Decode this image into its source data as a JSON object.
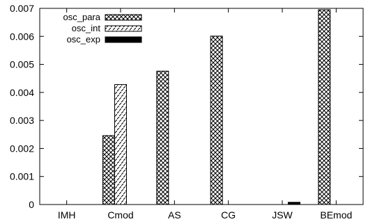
{
  "chart_data": {
    "type": "bar",
    "categories": [
      "IMH",
      "Cmod",
      "AS",
      "CG",
      "JSW",
      "BEmod"
    ],
    "series": [
      {
        "name": "osc_para",
        "pattern": "crosshatch",
        "values": [
          0,
          0.00246,
          0.00476,
          0.00601,
          0,
          0.00695
        ]
      },
      {
        "name": "osc_int",
        "pattern": "diagonal-dash",
        "values": [
          0,
          0.00428,
          0,
          0,
          0,
          0
        ]
      },
      {
        "name": "osc_exp",
        "pattern": "solid-black",
        "values": [
          0,
          0,
          0,
          0,
          8e-05,
          0
        ]
      }
    ],
    "ylim": [
      0,
      0.007
    ],
    "yticks": [
      "0",
      "0.001",
      "0.002",
      "0.003",
      "0.004",
      "0.005",
      "0.006",
      "0.007"
    ],
    "title": "",
    "xlabel": "",
    "ylabel": "",
    "grid": false,
    "legend_position": "top-left",
    "colors": {
      "foreground": "#000000",
      "background": "#ffffff"
    }
  }
}
